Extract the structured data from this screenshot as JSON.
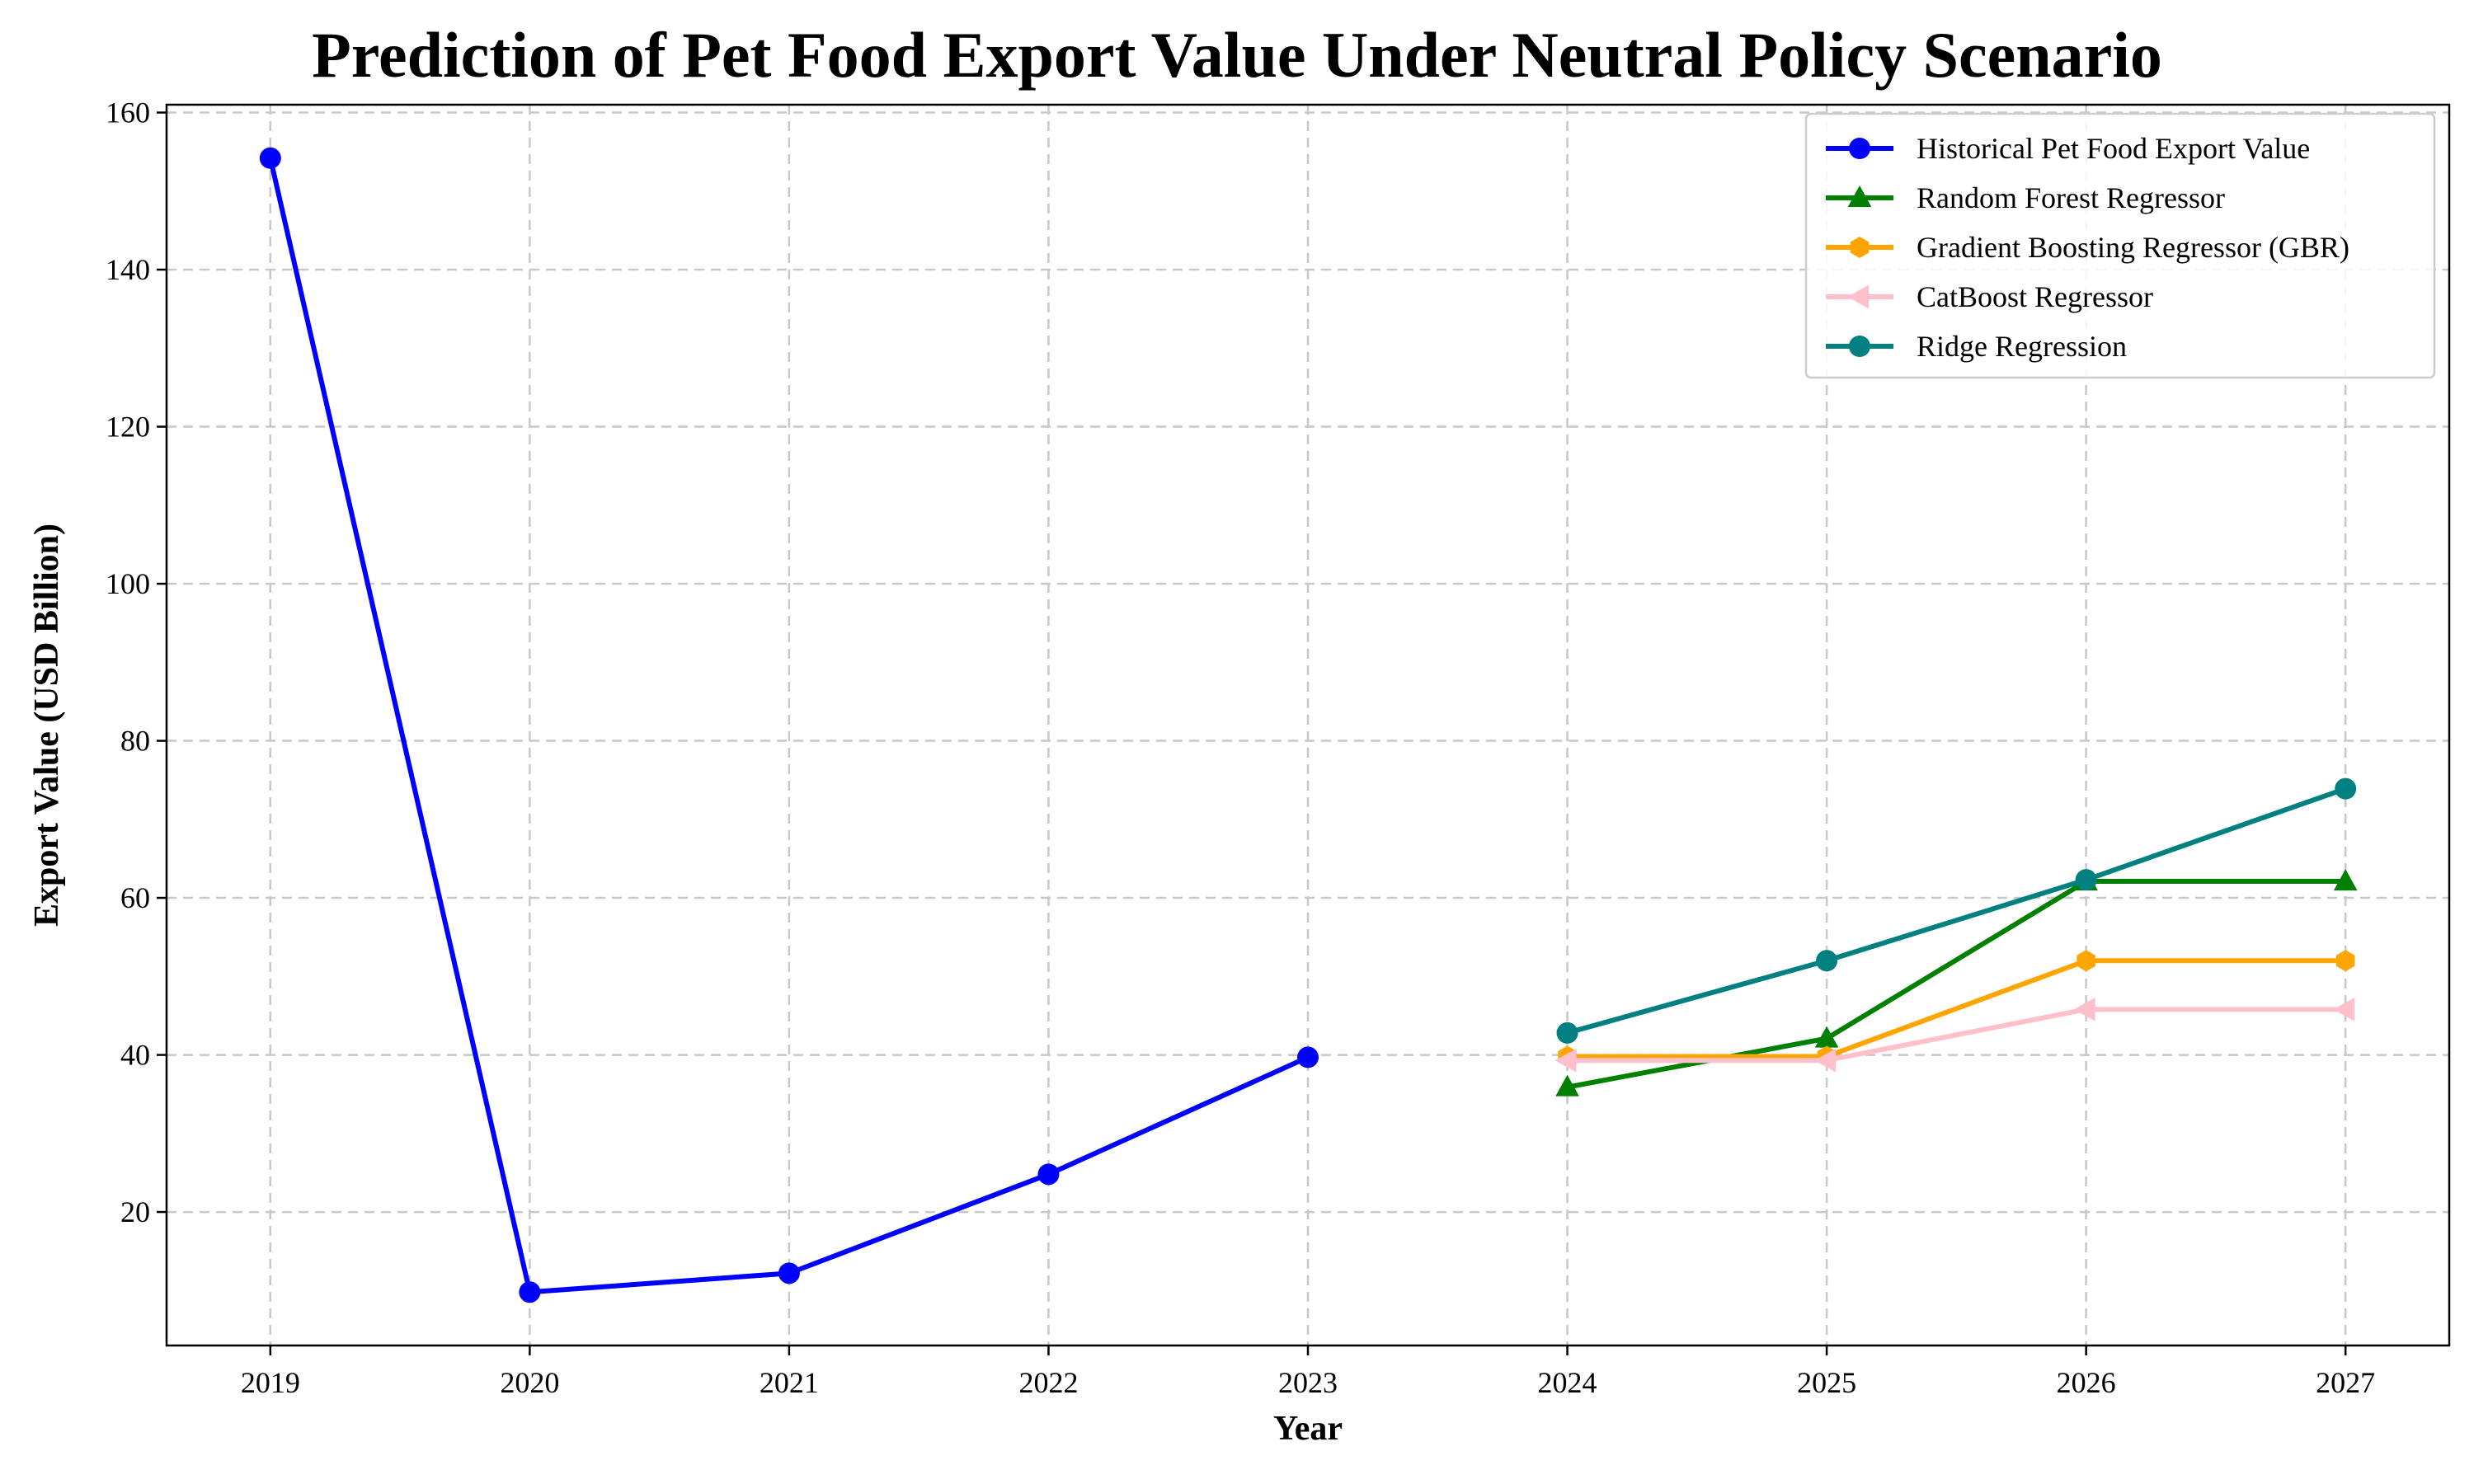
{
  "chart_data": {
    "type": "line",
    "title": "Prediction of Pet Food Export Value Under Neutral Policy Scenario",
    "xlabel": "Year",
    "ylabel": "Export Value (USD Billion)",
    "x_ticks": [
      "2019",
      "2020",
      "2021",
      "2022",
      "2023",
      "2024",
      "2025",
      "2026",
      "2027"
    ],
    "y_ticks": [
      20,
      40,
      60,
      80,
      100,
      120,
      140,
      160
    ],
    "xlim": [
      2018.6,
      2027.4
    ],
    "ylim": [
      3,
      161
    ],
    "grid": true,
    "legend_position": "top-right",
    "series": [
      {
        "name": "Historical Pet Food Export Value",
        "color": "#0000ff",
        "marker": "circle",
        "x": [
          2019,
          2020,
          2021,
          2022,
          2023
        ],
        "y": [
          154.2,
          9.8,
          12.2,
          24.8,
          39.7
        ]
      },
      {
        "name": "Random Forest Regressor",
        "color": "#008000",
        "marker": "triangle-up",
        "x": [
          2024,
          2025,
          2026,
          2027
        ],
        "y": [
          35.9,
          42.1,
          62.1,
          62.1
        ]
      },
      {
        "name": "Gradient Boosting Regressor (GBR)",
        "color": "#ffa500",
        "marker": "hexagon",
        "x": [
          2024,
          2025,
          2026,
          2027
        ],
        "y": [
          39.8,
          39.8,
          52.0,
          52.0
        ]
      },
      {
        "name": "CatBoost Regressor",
        "color": "#ffc0cb",
        "marker": "triangle-left",
        "x": [
          2024,
          2025,
          2026,
          2027
        ],
        "y": [
          39.3,
          39.3,
          45.8,
          45.8
        ]
      },
      {
        "name": "Ridge Regression",
        "color": "#008080",
        "marker": "circle",
        "x": [
          2024,
          2025,
          2026,
          2027
        ],
        "y": [
          42.8,
          52.0,
          62.3,
          73.9
        ]
      }
    ]
  }
}
